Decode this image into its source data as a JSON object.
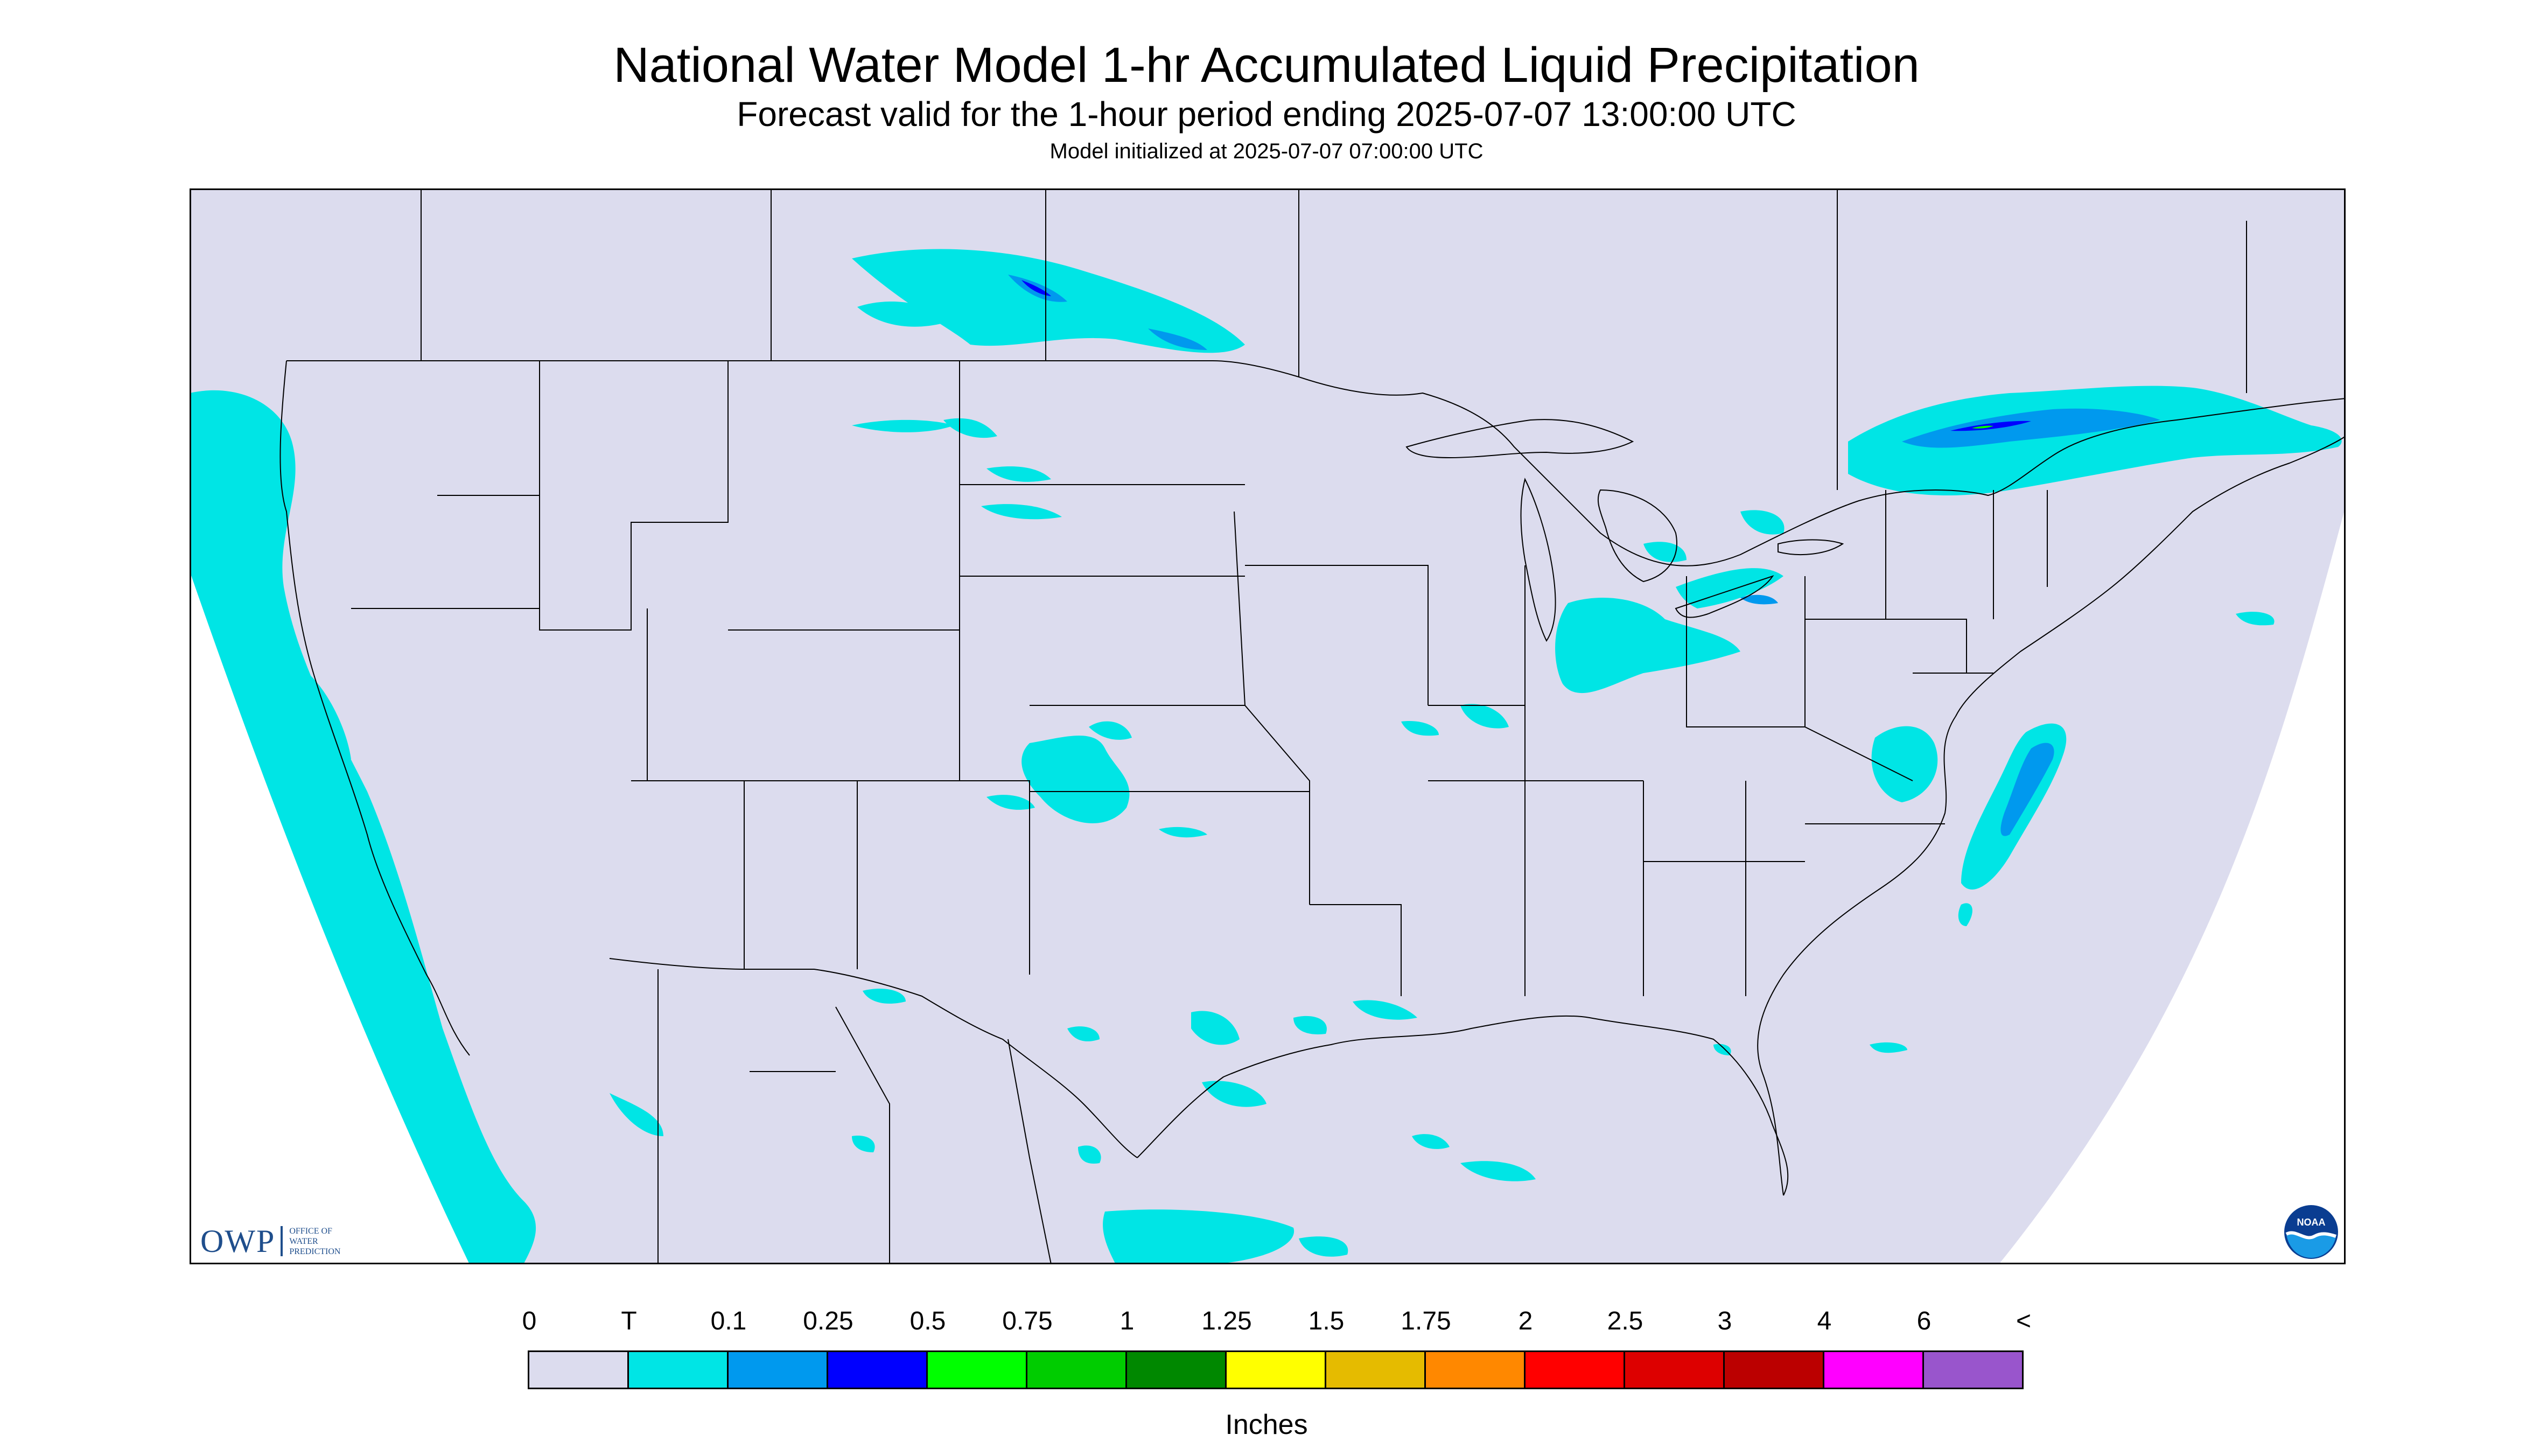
{
  "header": {
    "title": "National Water Model 1-hr Accumulated Liquid Precipitation",
    "subtitle": "Forecast valid for the 1-hour period ending 2025-07-07 13:00:00 UTC",
    "init_text": "Model initialized at 2025-07-07 07:00:00 UTC"
  },
  "map": {
    "background_color": "#ffffff",
    "domain_fill": "#dcdcee",
    "boundary_color": "#000000"
  },
  "logos": {
    "owp_letters": "OWP",
    "owp_line1": "Office of",
    "owp_line2": "Water",
    "owp_line3": "Prediction",
    "noaa_text": "NOAA"
  },
  "legend": {
    "labels": [
      "0",
      "T",
      "0.1",
      "0.25",
      "0.5",
      "0.75",
      "1",
      "1.25",
      "1.5",
      "1.75",
      "2",
      "2.5",
      "3",
      "4",
      "6",
      "<"
    ],
    "colors": [
      "#dcdcee",
      "#00e5e5",
      "#0099ee",
      "#0000ff",
      "#00ff00",
      "#00cc00",
      "#008800",
      "#ffff00",
      "#e5bb00",
      "#ff8800",
      "#ff0000",
      "#dd0000",
      "#bb0000",
      "#ff00ff",
      "#9955cc"
    ],
    "unit": "Inches"
  }
}
